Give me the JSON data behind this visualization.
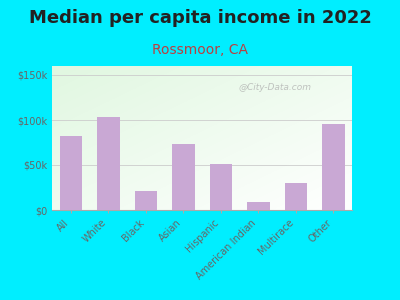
{
  "title": "Median per capita income in 2022",
  "subtitle": "Rossmoor, CA",
  "title_fontsize": 13,
  "subtitle_fontsize": 10,
  "title_color": "#222222",
  "subtitle_color": "#b94040",
  "categories": [
    "All",
    "White",
    "Black",
    "Asian",
    "Hispanic",
    "American Indian",
    "Multirace",
    "Other"
  ],
  "values": [
    82000,
    103000,
    21000,
    73000,
    51000,
    9000,
    30000,
    95000
  ],
  "bar_color": "#c9a8d4",
  "background_outer": "#00eeff",
  "ytick_labels": [
    "$0",
    "$50k",
    "$100k",
    "$150k"
  ],
  "ytick_values": [
    0,
    50000,
    100000,
    150000
  ],
  "ylim": [
    0,
    160000
  ],
  "watermark": "@City-Data.com",
  "gradient_topleft": [
    0.88,
    0.97,
    0.88
  ],
  "gradient_bottomright": [
    1.0,
    1.0,
    1.0
  ]
}
